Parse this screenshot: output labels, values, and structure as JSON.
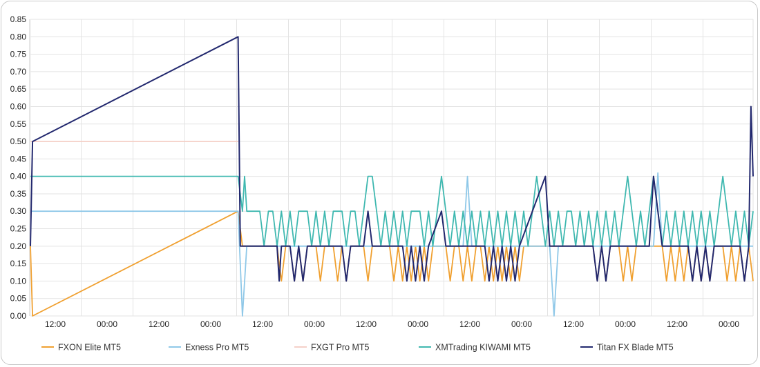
{
  "chart_data": {
    "type": "line",
    "title": "",
    "xlabel": "",
    "ylabel": "",
    "ylim": [
      0,
      0.85
    ],
    "y_ticks": [
      "0.00",
      "0.05",
      "0.10",
      "0.15",
      "0.20",
      "0.25",
      "0.30",
      "0.35",
      "0.40",
      "0.45",
      "0.50",
      "0.55",
      "0.60",
      "0.65",
      "0.70",
      "0.75",
      "0.80",
      "0.85"
    ],
    "x_ticks": [
      "12:00",
      "00:00",
      "12:00",
      "00:00",
      "12:00",
      "00:00",
      "12:00",
      "00:00",
      "12:00",
      "00:00",
      "12:00",
      "00:00",
      "12:00",
      "00:00"
    ],
    "x_range_hours": [
      0,
      167
    ],
    "grid": true,
    "legend_position": "bottom",
    "series": [
      {
        "name": "FXON Elite MT5",
        "color": "#f0a030",
        "points": [
          [
            0,
            0.2
          ],
          [
            0.5,
            0
          ],
          [
            48,
            0.3
          ],
          [
            49,
            0.2
          ],
          [
            57,
            0.2
          ],
          [
            58,
            0.1
          ],
          [
            59,
            0.2
          ],
          [
            60,
            0.2
          ],
          [
            61,
            0.1
          ],
          [
            62,
            0.2
          ],
          [
            63,
            0.1
          ],
          [
            64,
            0.2
          ],
          [
            66,
            0.2
          ],
          [
            67,
            0.1
          ],
          [
            68,
            0.2
          ],
          [
            70,
            0.2
          ],
          [
            71,
            0.1
          ],
          [
            72,
            0.2
          ],
          [
            73,
            0.1
          ],
          [
            74,
            0.2
          ],
          [
            77,
            0.2
          ],
          [
            78,
            0.1
          ],
          [
            79,
            0.2
          ],
          [
            83,
            0.2
          ],
          [
            84,
            0.1
          ],
          [
            85,
            0.2
          ],
          [
            86,
            0.1
          ],
          [
            87,
            0.2
          ],
          [
            88,
            0.1
          ],
          [
            89,
            0.2
          ],
          [
            90,
            0.1
          ],
          [
            91,
            0.2
          ],
          [
            92,
            0.1
          ],
          [
            93,
            0.2
          ],
          [
            96,
            0.2
          ],
          [
            97,
            0.1
          ],
          [
            98,
            0.2
          ],
          [
            99,
            0.2
          ],
          [
            100,
            0.1
          ],
          [
            101,
            0.2
          ],
          [
            102,
            0.1
          ],
          [
            103,
            0.2
          ],
          [
            104,
            0.2
          ],
          [
            105,
            0.1
          ],
          [
            106,
            0.2
          ],
          [
            107,
            0.1
          ],
          [
            108,
            0.2
          ],
          [
            109,
            0.1
          ],
          [
            110,
            0.2
          ],
          [
            111,
            0.1
          ],
          [
            112,
            0.2
          ],
          [
            113,
            0.1
          ],
          [
            114,
            0.2
          ],
          [
            116,
            0.2
          ],
          [
            118,
            0.2
          ],
          [
            121,
            0.2
          ],
          [
            130,
            0.2
          ],
          [
            131,
            0.1
          ],
          [
            132,
            0.2
          ],
          [
            133,
            0.1
          ],
          [
            134,
            0.2
          ],
          [
            136,
            0.2
          ],
          [
            137,
            0.1
          ],
          [
            138,
            0.2
          ],
          [
            139,
            0.1
          ],
          [
            140,
            0.2
          ],
          [
            146,
            0.2
          ],
          [
            147,
            0.1
          ],
          [
            148,
            0.2
          ],
          [
            149,
            0.1
          ],
          [
            150,
            0.2
          ],
          [
            151,
            0.1
          ],
          [
            152,
            0.2
          ],
          [
            153,
            0.1
          ],
          [
            154,
            0.2
          ],
          [
            155,
            0.1
          ],
          [
            156,
            0.2
          ],
          [
            157,
            0.1
          ],
          [
            158,
            0.2
          ],
          [
            160,
            0.2
          ],
          [
            161,
            0.1
          ],
          [
            162,
            0.2
          ],
          [
            163,
            0.1
          ],
          [
            164,
            0.2
          ],
          [
            165,
            0.1
          ],
          [
            166,
            0.2
          ],
          [
            167,
            0.1
          ]
        ]
      },
      {
        "name": "Exness Pro MT5",
        "color": "#8fc8e8",
        "points": [
          [
            0,
            0.3
          ],
          [
            48,
            0.3
          ],
          [
            49,
            0
          ],
          [
            50,
            0.2
          ],
          [
            90,
            0.2
          ],
          [
            100,
            0.2
          ],
          [
            101,
            0.4
          ],
          [
            102,
            0.2
          ],
          [
            120,
            0.2
          ],
          [
            121,
            0
          ],
          [
            122,
            0.2
          ],
          [
            144,
            0.2
          ],
          [
            145,
            0.41
          ],
          [
            146,
            0.2
          ],
          [
            167,
            0.2
          ]
        ]
      },
      {
        "name": "FXGT Pro MT5",
        "color": "#f5d0c8",
        "points": [
          [
            0,
            0.5
          ],
          [
            48,
            0.5
          ]
        ]
      },
      {
        "name": "XMTrading KIWAMI MT5",
        "color": "#3fb8b0",
        "points": [
          [
            0,
            0.4
          ],
          [
            48,
            0.4
          ],
          [
            49,
            0.3
          ],
          [
            49.5,
            0.4
          ],
          [
            50,
            0.3
          ],
          [
            53,
            0.3
          ],
          [
            54,
            0.2
          ],
          [
            55,
            0.3
          ],
          [
            56,
            0.3
          ],
          [
            57,
            0.2
          ],
          [
            58,
            0.3
          ],
          [
            59,
            0.2
          ],
          [
            60,
            0.3
          ],
          [
            61,
            0.2
          ],
          [
            62,
            0.3
          ],
          [
            64,
            0.3
          ],
          [
            65,
            0.2
          ],
          [
            66,
            0.3
          ],
          [
            67,
            0.2
          ],
          [
            68,
            0.3
          ],
          [
            69,
            0.2
          ],
          [
            70,
            0.3
          ],
          [
            72,
            0.3
          ],
          [
            73,
            0.2
          ],
          [
            74,
            0.3
          ],
          [
            75,
            0.3
          ],
          [
            76,
            0.2
          ],
          [
            77,
            0.3
          ],
          [
            78,
            0.4
          ],
          [
            79,
            0.4
          ],
          [
            80,
            0.3
          ],
          [
            81,
            0.2
          ],
          [
            82,
            0.3
          ],
          [
            83,
            0.2
          ],
          [
            84,
            0.3
          ],
          [
            85,
            0.2
          ],
          [
            86,
            0.3
          ],
          [
            87,
            0.2
          ],
          [
            88,
            0.3
          ],
          [
            90,
            0.3
          ],
          [
            91,
            0.2
          ],
          [
            92,
            0.3
          ],
          [
            93,
            0.2
          ],
          [
            94,
            0.3
          ],
          [
            95,
            0.4
          ],
          [
            96,
            0.3
          ],
          [
            97,
            0.2
          ],
          [
            98,
            0.3
          ],
          [
            99,
            0.2
          ],
          [
            100,
            0.3
          ],
          [
            101,
            0.2
          ],
          [
            102,
            0.3
          ],
          [
            103,
            0.2
          ],
          [
            104,
            0.3
          ],
          [
            105,
            0.2
          ],
          [
            106,
            0.3
          ],
          [
            107,
            0.2
          ],
          [
            108,
            0.3
          ],
          [
            109,
            0.2
          ],
          [
            110,
            0.3
          ],
          [
            111,
            0.2
          ],
          [
            112,
            0.3
          ],
          [
            113,
            0.2
          ],
          [
            114,
            0.3
          ],
          [
            115,
            0.2
          ],
          [
            116,
            0.3
          ],
          [
            117,
            0.4
          ],
          [
            118,
            0.3
          ],
          [
            119,
            0.2
          ],
          [
            120,
            0.3
          ],
          [
            121,
            0.2
          ],
          [
            122,
            0.3
          ],
          [
            123,
            0.2
          ],
          [
            124,
            0.3
          ],
          [
            125,
            0.3
          ],
          [
            126,
            0.2
          ],
          [
            127,
            0.3
          ],
          [
            128,
            0.2
          ],
          [
            129,
            0.3
          ],
          [
            130,
            0.2
          ],
          [
            131,
            0.3
          ],
          [
            132,
            0.2
          ],
          [
            133,
            0.3
          ],
          [
            134,
            0.2
          ],
          [
            135,
            0.3
          ],
          [
            136,
            0.2
          ],
          [
            137,
            0.3
          ],
          [
            138,
            0.4
          ],
          [
            139,
            0.3
          ],
          [
            140,
            0.2
          ],
          [
            141,
            0.3
          ],
          [
            142,
            0.2
          ],
          [
            143,
            0.3
          ],
          [
            144,
            0.4
          ],
          [
            145,
            0.3
          ],
          [
            146,
            0.2
          ],
          [
            147,
            0.3
          ],
          [
            148,
            0.2
          ],
          [
            149,
            0.3
          ],
          [
            150,
            0.2
          ],
          [
            151,
            0.3
          ],
          [
            152,
            0.2
          ],
          [
            153,
            0.3
          ],
          [
            154,
            0.2
          ],
          [
            155,
            0.3
          ],
          [
            156,
            0.2
          ],
          [
            157,
            0.3
          ],
          [
            158,
            0.2
          ],
          [
            159,
            0.3
          ],
          [
            160,
            0.4
          ],
          [
            161,
            0.3
          ],
          [
            162,
            0.2
          ],
          [
            163,
            0.3
          ],
          [
            164,
            0.2
          ],
          [
            165,
            0.3
          ],
          [
            166,
            0.2
          ],
          [
            167,
            0.3
          ]
        ]
      },
      {
        "name": "Titan FX Blade MT5",
        "color": "#22286e",
        "points": [
          [
            0,
            0.2
          ],
          [
            0.5,
            0.5
          ],
          [
            48,
            0.8
          ],
          [
            48.5,
            0.2
          ],
          [
            57,
            0.2
          ],
          [
            57.5,
            0.1
          ],
          [
            58,
            0.2
          ],
          [
            60,
            0.2
          ],
          [
            61,
            0.1
          ],
          [
            62,
            0.2
          ],
          [
            63,
            0.1
          ],
          [
            64,
            0.2
          ],
          [
            72,
            0.2
          ],
          [
            73,
            0.1
          ],
          [
            74,
            0.2
          ],
          [
            77,
            0.2
          ],
          [
            78,
            0.3
          ],
          [
            79,
            0.2
          ],
          [
            86,
            0.2
          ],
          [
            87,
            0.1
          ],
          [
            88,
            0.2
          ],
          [
            89,
            0.1
          ],
          [
            90,
            0.2
          ],
          [
            91,
            0.1
          ],
          [
            92,
            0.2
          ],
          [
            95,
            0.3
          ],
          [
            96,
            0.2
          ],
          [
            105,
            0.2
          ],
          [
            106,
            0.1
          ],
          [
            107,
            0.2
          ],
          [
            108,
            0.1
          ],
          [
            109,
            0.2
          ],
          [
            110,
            0.1
          ],
          [
            111,
            0.2
          ],
          [
            112,
            0.1
          ],
          [
            113,
            0.2
          ],
          [
            119,
            0.4
          ],
          [
            120,
            0.2
          ],
          [
            130,
            0.2
          ],
          [
            131,
            0.1
          ],
          [
            132,
            0.2
          ],
          [
            133,
            0.1
          ],
          [
            134,
            0.2
          ],
          [
            143,
            0.2
          ],
          [
            144,
            0.4
          ],
          [
            145,
            0.3
          ],
          [
            146,
            0.2
          ],
          [
            152,
            0.2
          ],
          [
            153,
            0.1
          ],
          [
            154,
            0.2
          ],
          [
            155,
            0.1
          ],
          [
            156,
            0.2
          ],
          [
            157,
            0.1
          ],
          [
            158,
            0.2
          ],
          [
            164,
            0.2
          ],
          [
            165,
            0.1
          ],
          [
            166,
            0.2
          ],
          [
            166.5,
            0.6
          ],
          [
            167,
            0.4
          ]
        ]
      }
    ]
  }
}
